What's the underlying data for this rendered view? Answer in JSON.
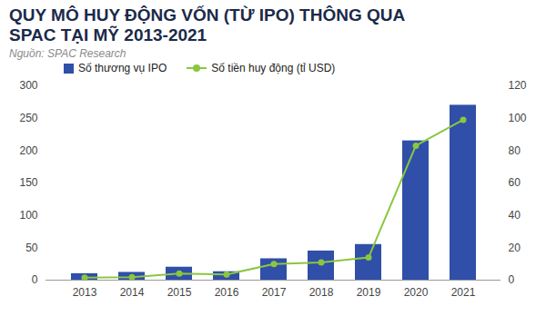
{
  "chart_data": {
    "type": "bar",
    "title": "QUY MÔ HUY ĐỘNG VỐN (TỪ IPO) THÔNG QUA SPAC TẠI MỸ 2013-2021",
    "subtitle": "Nguồn: SPAC Research",
    "categories": [
      "2013",
      "2014",
      "2015",
      "2016",
      "2017",
      "2018",
      "2019",
      "2020",
      "2021"
    ],
    "series": [
      {
        "name": "Số thương vụ IPO",
        "type": "bar",
        "color": "#2f4fa8",
        "values": [
          10,
          12,
          20,
          13,
          33,
          45,
          55,
          215,
          270
        ]
      },
      {
        "name": "Số tiền huy động (tỉ USD)",
        "type": "line",
        "axis": "y2",
        "color": "#8cc63f",
        "marker": "circle",
        "values": [
          1.5,
          1.8,
          4,
          3.5,
          10,
          11,
          14,
          83,
          99
        ]
      }
    ],
    "ylim": [
      0,
      300
    ],
    "yticks": [
      0,
      50,
      100,
      150,
      200,
      250,
      300
    ],
    "y2lim": [
      0,
      120
    ],
    "y2ticks": [
      0,
      20,
      40,
      60,
      80,
      100,
      120
    ],
    "grid": false,
    "legend": "top"
  }
}
